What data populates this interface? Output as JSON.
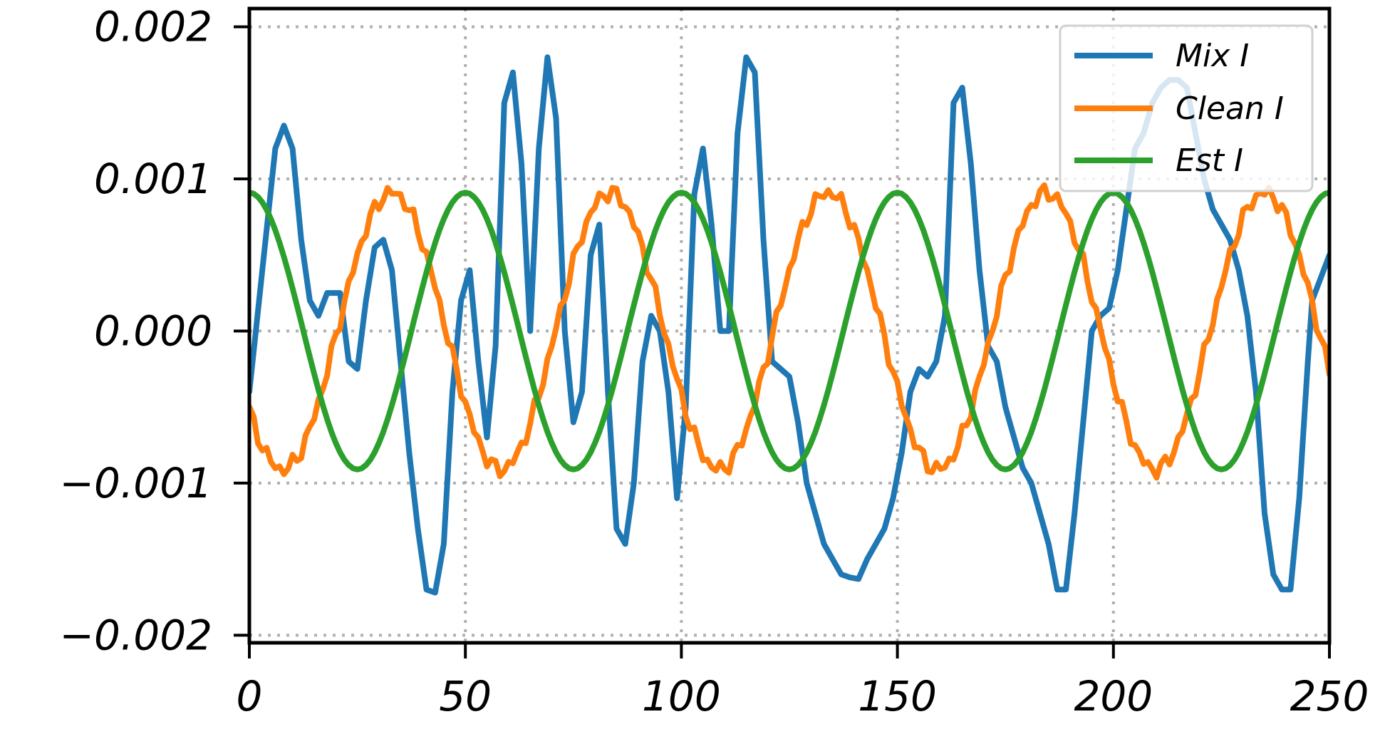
{
  "chart_data": {
    "type": "line",
    "title": "",
    "xlabel": "",
    "ylabel": "",
    "xlim": [
      0,
      250
    ],
    "ylim": [
      -0.00205,
      0.00212
    ],
    "grid": true,
    "legend_position": "top-right",
    "x_ticks": [
      0,
      50,
      100,
      150,
      200,
      250
    ],
    "x_tick_labels": [
      "0",
      "50",
      "100",
      "150",
      "200",
      "250"
    ],
    "y_ticks": [
      0.002,
      0.001,
      0.0,
      -0.001,
      -0.002
    ],
    "y_tick_labels": [
      "0.002",
      "0.001",
      "0.000",
      "−0.001",
      "−0.002"
    ],
    "x_range": {
      "start": 0,
      "end": 250,
      "step": 1
    },
    "series": [
      {
        "name": "Mix I",
        "color": "#1f77b4",
        "points": [
          [
            0,
            -0.0004
          ],
          [
            3,
            0.0004
          ],
          [
            6,
            0.0012
          ],
          [
            8,
            0.00135
          ],
          [
            10,
            0.0012
          ],
          [
            12,
            0.0006
          ],
          [
            14,
            0.0002
          ],
          [
            16,
            0.0001
          ],
          [
            18,
            0.00025
          ],
          [
            21,
            0.00025
          ],
          [
            23,
            -0.0002
          ],
          [
            25,
            -0.00025
          ],
          [
            27,
            0.0002
          ],
          [
            29,
            0.00055
          ],
          [
            31,
            0.0006
          ],
          [
            33,
            0.0004
          ],
          [
            35,
            -0.0002
          ],
          [
            37,
            -0.0008
          ],
          [
            39,
            -0.0013
          ],
          [
            41,
            -0.0017
          ],
          [
            43,
            -0.00172
          ],
          [
            45,
            -0.0014
          ],
          [
            47,
            -0.0004
          ],
          [
            49,
            0.0002
          ],
          [
            51,
            0.0004
          ],
          [
            53,
            -0.0002
          ],
          [
            55,
            -0.0007
          ],
          [
            57,
            -0.0001
          ],
          [
            59,
            0.0015
          ],
          [
            61,
            0.0017
          ],
          [
            63,
            0.0011
          ],
          [
            65,
            0.0
          ],
          [
            67,
            0.0012
          ],
          [
            69,
            0.0018
          ],
          [
            71,
            0.0014
          ],
          [
            73,
            0.0
          ],
          [
            75,
            -0.0006
          ],
          [
            77,
            -0.0004
          ],
          [
            79,
            0.0005
          ],
          [
            81,
            0.0007
          ],
          [
            83,
            -0.0004
          ],
          [
            85,
            -0.0013
          ],
          [
            87,
            -0.0014
          ],
          [
            89,
            -0.001
          ],
          [
            91,
            -0.0002
          ],
          [
            93,
            0.0001
          ],
          [
            95,
            0.0
          ],
          [
            97,
            -0.0004
          ],
          [
            99,
            -0.0011
          ],
          [
            101,
            -0.0005
          ],
          [
            103,
            0.0009
          ],
          [
            105,
            0.0012
          ],
          [
            107,
            0.0007
          ],
          [
            109,
            0.0
          ],
          [
            111,
            0.0
          ],
          [
            113,
            0.0013
          ],
          [
            115,
            0.0018
          ],
          [
            117,
            0.0017
          ],
          [
            119,
            0.0006
          ],
          [
            121,
            -0.0002
          ],
          [
            123,
            -0.00025
          ],
          [
            125,
            -0.0003
          ],
          [
            127,
            -0.0006
          ],
          [
            129,
            -0.001
          ],
          [
            131,
            -0.0012
          ],
          [
            133,
            -0.0014
          ],
          [
            135,
            -0.0015
          ],
          [
            137,
            -0.0016
          ],
          [
            139,
            -0.00162
          ],
          [
            141,
            -0.00163
          ],
          [
            143,
            -0.0015
          ],
          [
            145,
            -0.0014
          ],
          [
            147,
            -0.0013
          ],
          [
            149,
            -0.0011
          ],
          [
            151,
            -0.0008
          ],
          [
            153,
            -0.0004
          ],
          [
            155,
            -0.00025
          ],
          [
            157,
            -0.0003
          ],
          [
            159,
            -0.0002
          ],
          [
            161,
            0.0001
          ],
          [
            163,
            0.0015
          ],
          [
            165,
            0.0016
          ],
          [
            167,
            0.0011
          ],
          [
            169,
            0.0004
          ],
          [
            171,
            -0.0001
          ],
          [
            173,
            -0.0002
          ],
          [
            175,
            -0.0005
          ],
          [
            177,
            -0.0007
          ],
          [
            179,
            -0.0009
          ],
          [
            181,
            -0.001
          ],
          [
            183,
            -0.0012
          ],
          [
            185,
            -0.0014
          ],
          [
            187,
            -0.0017
          ],
          [
            189,
            -0.0017
          ],
          [
            191,
            -0.0012
          ],
          [
            193,
            -0.0006
          ],
          [
            195,
            0.0
          ],
          [
            197,
            0.0001
          ],
          [
            199,
            0.00015
          ],
          [
            201,
            0.0004
          ],
          [
            203,
            0.0008
          ],
          [
            205,
            0.0012
          ],
          [
            207,
            0.0013
          ],
          [
            209,
            0.0015
          ],
          [
            211,
            0.0016
          ],
          [
            213,
            0.00165
          ],
          [
            215,
            0.00165
          ],
          [
            217,
            0.0016
          ],
          [
            219,
            0.0013
          ],
          [
            221,
            0.001
          ],
          [
            223,
            0.0008
          ],
          [
            225,
            0.0007
          ],
          [
            227,
            0.0006
          ],
          [
            229,
            0.0004
          ],
          [
            231,
            0.0001
          ],
          [
            233,
            -0.0004
          ],
          [
            235,
            -0.0012
          ],
          [
            237,
            -0.0016
          ],
          [
            239,
            -0.0017
          ],
          [
            241,
            -0.0017
          ],
          [
            243,
            -0.0011
          ],
          [
            245,
            -0.0002
          ],
          [
            246,
            0.0002
          ],
          [
            248,
            0.00035
          ],
          [
            250,
            0.0005
          ]
        ]
      },
      {
        "name": "Clean I",
        "color": "#ff7f0e",
        "amplitude": 0.00091,
        "period": 50.5,
        "phase_deg": 215,
        "ripple": 4e-05
      },
      {
        "name": "Est I",
        "color": "#2ca02c",
        "amplitude": 0.00091,
        "period": 50.0,
        "phase_deg": 90,
        "ripple": 0.0
      }
    ]
  }
}
